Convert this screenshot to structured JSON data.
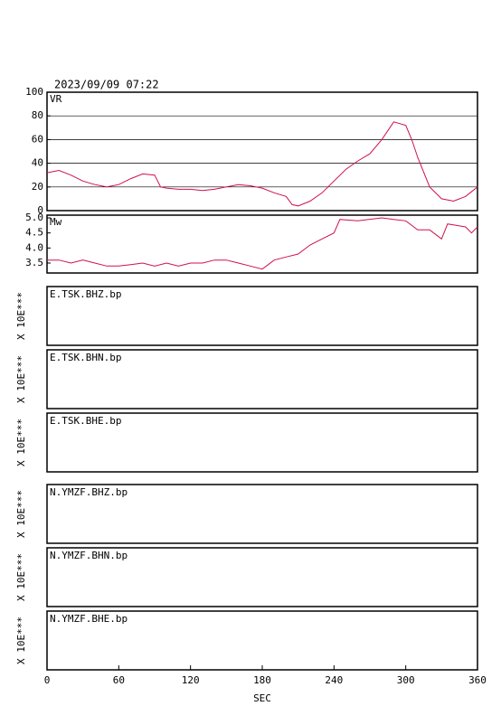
{
  "title": "2023/09/09 07:22",
  "x_axis": {
    "label": "SEC",
    "xlim": [
      0,
      360
    ],
    "xticks": [
      0,
      60,
      120,
      180,
      240,
      300,
      360
    ]
  },
  "chart_data": [
    {
      "type": "line",
      "label": "VR",
      "color": "#d0104a",
      "grid": true,
      "ylim": [
        0,
        100
      ],
      "yticks": [
        0,
        20,
        40,
        60,
        80,
        100
      ],
      "x": [
        0,
        10,
        20,
        30,
        40,
        50,
        60,
        70,
        80,
        90,
        95,
        100,
        110,
        120,
        130,
        140,
        150,
        160,
        170,
        180,
        190,
        200,
        205,
        210,
        220,
        230,
        240,
        250,
        260,
        270,
        280,
        290,
        300,
        305,
        310,
        320,
        330,
        340,
        350,
        360
      ],
      "values": [
        32,
        34,
        30,
        25,
        22,
        20,
        22,
        27,
        31,
        30,
        20,
        19,
        18,
        18,
        17,
        18,
        20,
        22,
        21,
        19,
        15,
        12,
        5,
        4,
        8,
        15,
        25,
        35,
        42,
        48,
        60,
        75,
        72,
        60,
        45,
        20,
        10,
        8,
        12,
        20
      ]
    },
    {
      "type": "line",
      "label": "Mw",
      "color": "#d0104a",
      "grid": false,
      "ylim": [
        3.17,
        5.09
      ],
      "yticks": [
        {
          "value": 3.5,
          "label": "3.5"
        },
        {
          "value": 4.0,
          "label": "4.0"
        },
        {
          "value": 4.5,
          "label": "4.5"
        },
        {
          "value": 5.0,
          "label": "5.0"
        }
      ],
      "x": [
        0,
        10,
        20,
        30,
        40,
        50,
        60,
        70,
        80,
        90,
        100,
        110,
        120,
        130,
        140,
        150,
        160,
        170,
        180,
        190,
        200,
        210,
        220,
        230,
        240,
        245,
        260,
        280,
        290,
        300,
        310,
        320,
        330,
        335,
        350,
        355,
        360
      ],
      "values": [
        3.6,
        3.6,
        3.5,
        3.6,
        3.5,
        3.4,
        3.4,
        3.45,
        3.5,
        3.4,
        3.5,
        3.4,
        3.5,
        3.5,
        3.6,
        3.6,
        3.5,
        3.4,
        3.3,
        3.6,
        3.7,
        3.8,
        4.1,
        4.3,
        4.5,
        4.95,
        4.9,
        5.0,
        4.95,
        4.9,
        4.6,
        4.6,
        4.3,
        4.8,
        4.7,
        4.5,
        4.7
      ]
    }
  ],
  "traces": [
    {
      "name": "E.TSK.BHZ.bp",
      "scale": "X 10E***"
    },
    {
      "name": "E.TSK.BHN.bp",
      "scale": "X 10E***"
    },
    {
      "name": "E.TSK.BHE.bp",
      "scale": "X 10E***"
    },
    {
      "name": "N.YMZF.BHZ.bp",
      "scale": "X 10E***"
    },
    {
      "name": "N.YMZF.BHN.bp",
      "scale": "X 10E***"
    },
    {
      "name": "N.YMZF.BHE.bp",
      "scale": "X 10E***"
    }
  ]
}
